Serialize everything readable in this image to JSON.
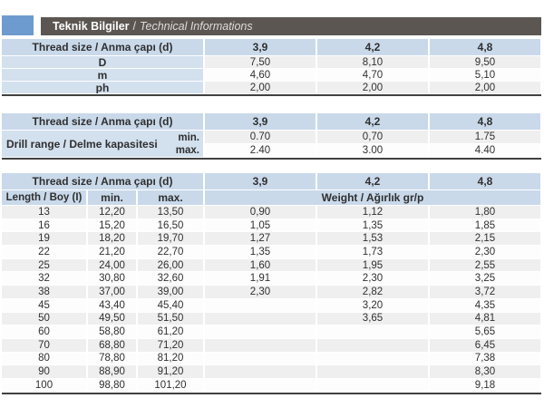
{
  "header": {
    "title_tr": "Teknik Bilgiler",
    "separator": "/",
    "title_en": "Technical Informations"
  },
  "colors": {
    "accent_blue": "#6d9bcf",
    "bar_gray": "#5b5651",
    "header_cell_blue": "#c9d9ea",
    "label_cell_blue": "#d3e0ee",
    "row_shade": "#efefef",
    "row_plain": "#fdfdfd",
    "table_border": "#404040"
  },
  "table1": {
    "header_label": "Thread size / Anma çapı (d)",
    "sizes": [
      "3,9",
      "4,2",
      "4,8"
    ],
    "rows": [
      {
        "label": "D",
        "values": [
          "7,50",
          "8,10",
          "9,50"
        ]
      },
      {
        "label": "m",
        "values": [
          "4,60",
          "4,70",
          "5,10"
        ]
      },
      {
        "label": "ph",
        "values": [
          "2,00",
          "2,00",
          "2,00"
        ]
      }
    ]
  },
  "table2": {
    "header_label": "Thread size / Anma çapı (d)",
    "sizes": [
      "3,9",
      "4,2",
      "4,8"
    ],
    "row_label": "Drill range / Delme kapasitesi",
    "min_label": "min.",
    "max_label": "max.",
    "min_values": [
      "0.70",
      "0,70",
      "1.75"
    ],
    "max_values": [
      "2.40",
      "3.00",
      "4.40"
    ]
  },
  "table3": {
    "header_label": "Thread size / Anma çapı (d)",
    "sizes": [
      "3,9",
      "4,2",
      "4,8"
    ],
    "length_label": "Length / Boy (I)",
    "min_label": "min.",
    "max_label": "max.",
    "weight_label": "Weight / Ağırlık gr/p",
    "rows": [
      {
        "length": "13",
        "min": "12,20",
        "max": "13,50",
        "weights": [
          "0,90",
          "1,12",
          "1,80"
        ]
      },
      {
        "length": "16",
        "min": "15,20",
        "max": "16,50",
        "weights": [
          "1,05",
          "1,35",
          "1,85"
        ]
      },
      {
        "length": "19",
        "min": "18,20",
        "max": "19,70",
        "weights": [
          "1,27",
          "1,53",
          "2,15"
        ]
      },
      {
        "length": "22",
        "min": "21,20",
        "max": "22,70",
        "weights": [
          "1,35",
          "1,73",
          "2,30"
        ]
      },
      {
        "length": "25",
        "min": "24,00",
        "max": "26,00",
        "weights": [
          "1,60",
          "1,95",
          "2,55"
        ]
      },
      {
        "length": "32",
        "min": "30,80",
        "max": "32,60",
        "weights": [
          "1,91",
          "2,30",
          "3,25"
        ]
      },
      {
        "length": "38",
        "min": "37,00",
        "max": "39,00",
        "weights": [
          "2,30",
          "2,82",
          "3,72"
        ]
      },
      {
        "length": "45",
        "min": "43,40",
        "max": "45,40",
        "weights": [
          "",
          "3,20",
          "4,35"
        ]
      },
      {
        "length": "50",
        "min": "49,50",
        "max": "51,50",
        "weights": [
          "",
          "3,65",
          "4,81"
        ]
      },
      {
        "length": "60",
        "min": "58,80",
        "max": "61,20",
        "weights": [
          "",
          "",
          "5,65"
        ]
      },
      {
        "length": "70",
        "min": "68,80",
        "max": "71,20",
        "weights": [
          "",
          "",
          "6,45"
        ]
      },
      {
        "length": "80",
        "min": "78,80",
        "max": "81,20",
        "weights": [
          "",
          "",
          "7,38"
        ]
      },
      {
        "length": "90",
        "min": "88,90",
        "max": "91,20",
        "weights": [
          "",
          "",
          "8,30"
        ]
      },
      {
        "length": "100",
        "min": "98,80",
        "max": "101,20",
        "weights": [
          "",
          "",
          "9,18"
        ]
      }
    ]
  }
}
